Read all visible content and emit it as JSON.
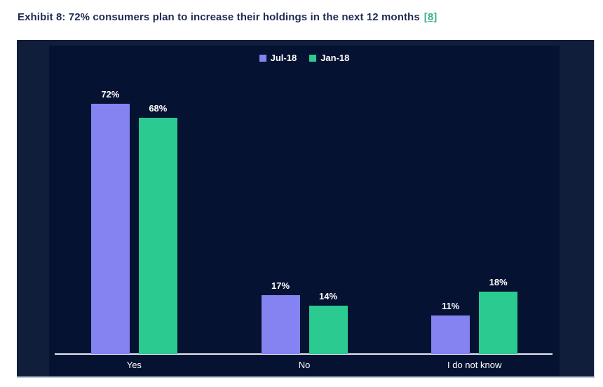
{
  "title": {
    "text": "Exhibit 8: 72% consumers  plan to increase their holdings in the next 12 months",
    "reference": "[8]"
  },
  "chart_data": {
    "type": "bar",
    "title": "",
    "xlabel": "",
    "ylabel": "",
    "unit": "%",
    "categories": [
      "Yes",
      "No",
      "I do not know"
    ],
    "series": [
      {
        "name": "Jul-18",
        "color": "#8583f1",
        "values": [
          72,
          17,
          11
        ],
        "labels": [
          "72%",
          "17%",
          "11%"
        ]
      },
      {
        "name": "Jan-18",
        "color": "#2bca90",
        "values": [
          68,
          14,
          18
        ],
        "labels": [
          "68%",
          "14%",
          "18%"
        ]
      }
    ],
    "ylim": [
      0,
      80
    ],
    "grid": false,
    "legend_position": "top-center",
    "colors": {
      "chart_background": "#101d3b",
      "plot_background": "#061231",
      "axis_line": "#e3eaf6",
      "label_text": "#ffffff",
      "title_text": "#1f2b56",
      "reference_link": "#3cae8e"
    }
  }
}
